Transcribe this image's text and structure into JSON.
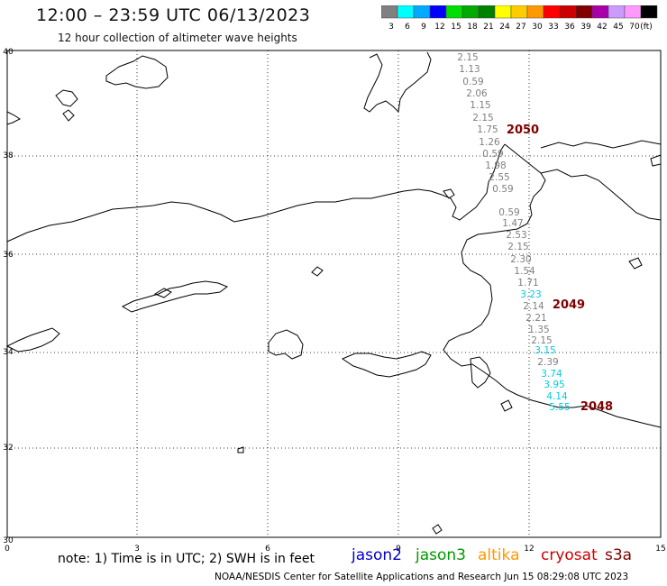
{
  "header": {
    "title": "12:00 – 23:59 UTC 06/13/2023",
    "subtitle": "12 hour collection of altimeter wave heights"
  },
  "legend": {
    "unit": "(ft)",
    "bins": [
      {
        "label": "3",
        "color": "#808080"
      },
      {
        "label": "6",
        "color": "#00ffff"
      },
      {
        "label": "9",
        "color": "#00aaff"
      },
      {
        "label": "12",
        "color": "#0000ff"
      },
      {
        "label": "15",
        "color": "#00dd00"
      },
      {
        "label": "18",
        "color": "#00aa00"
      },
      {
        "label": "21",
        "color": "#008000"
      },
      {
        "label": "24",
        "color": "#ffff00"
      },
      {
        "label": "27",
        "color": "#ffcc00"
      },
      {
        "label": "30",
        "color": "#ff9900"
      },
      {
        "label": "33",
        "color": "#ff0000"
      },
      {
        "label": "36",
        "color": "#cc0000"
      },
      {
        "label": "39",
        "color": "#800000"
      },
      {
        "label": "42",
        "color": "#aa00aa"
      },
      {
        "label": "45",
        "color": "#cc99ff"
      },
      {
        "label": "70",
        "color": "#ff99ff"
      },
      {
        "label": "",
        "color": "#000000"
      }
    ]
  },
  "axes": {
    "x_ticks": [
      "0",
      "3",
      "6",
      "9",
      "12",
      "15"
    ],
    "y_ticks": [
      "40",
      "38",
      "36",
      "34",
      "32",
      "30"
    ]
  },
  "track_color_low": "#808080",
  "track_color_mid": "#00ccdd",
  "pass_label_color": "#800000",
  "pass_labels": [
    "2050",
    "2049",
    "2048"
  ],
  "wave_heights": [
    {
      "v": "2.15",
      "c": "low"
    },
    {
      "v": "1.13",
      "c": "low"
    },
    {
      "v": "0.59",
      "c": "low"
    },
    {
      "v": "2.06",
      "c": "low"
    },
    {
      "v": "1.15",
      "c": "low"
    },
    {
      "v": "2.15",
      "c": "low"
    },
    {
      "v": "1.75",
      "c": "low"
    },
    {
      "v": "1.26",
      "c": "low"
    },
    {
      "v": "0.59",
      "c": "low"
    },
    {
      "v": "1.98",
      "c": "low"
    },
    {
      "v": "2.55",
      "c": "low"
    },
    {
      "v": "0.59",
      "c": "low"
    },
    {
      "v": "0.59",
      "c": "low"
    },
    {
      "v": "1.47",
      "c": "low"
    },
    {
      "v": "2.53",
      "c": "low"
    },
    {
      "v": "2.15",
      "c": "low"
    },
    {
      "v": "2.30",
      "c": "low"
    },
    {
      "v": "1.54",
      "c": "low"
    },
    {
      "v": "1.71",
      "c": "low"
    },
    {
      "v": "3.23",
      "c": "mid"
    },
    {
      "v": "2.14",
      "c": "low"
    },
    {
      "v": "2.21",
      "c": "low"
    },
    {
      "v": "1.35",
      "c": "low"
    },
    {
      "v": "2.15",
      "c": "low"
    },
    {
      "v": "3.15",
      "c": "mid"
    },
    {
      "v": "2.39",
      "c": "low"
    },
    {
      "v": "3.74",
      "c": "mid"
    },
    {
      "v": "3.95",
      "c": "mid"
    },
    {
      "v": "4.14",
      "c": "mid"
    },
    {
      "v": "5.55",
      "c": "mid"
    }
  ],
  "footer": {
    "note": "note:  1) Time is in UTC;  2) SWH is in feet",
    "satellites": [
      {
        "name": "jason2",
        "color": "#0000cc"
      },
      {
        "name": "jason3",
        "color": "#009900"
      },
      {
        "name": "altika",
        "color": "#ff9900"
      },
      {
        "name": "cryosat",
        "color": "#cc0000"
      },
      {
        "name": "s3a",
        "color": "#800000"
      }
    ],
    "credit": "NOAA/NESDIS Center for Satellite Applications and Research     Jun 15 08:29:08 UTC 2023"
  }
}
